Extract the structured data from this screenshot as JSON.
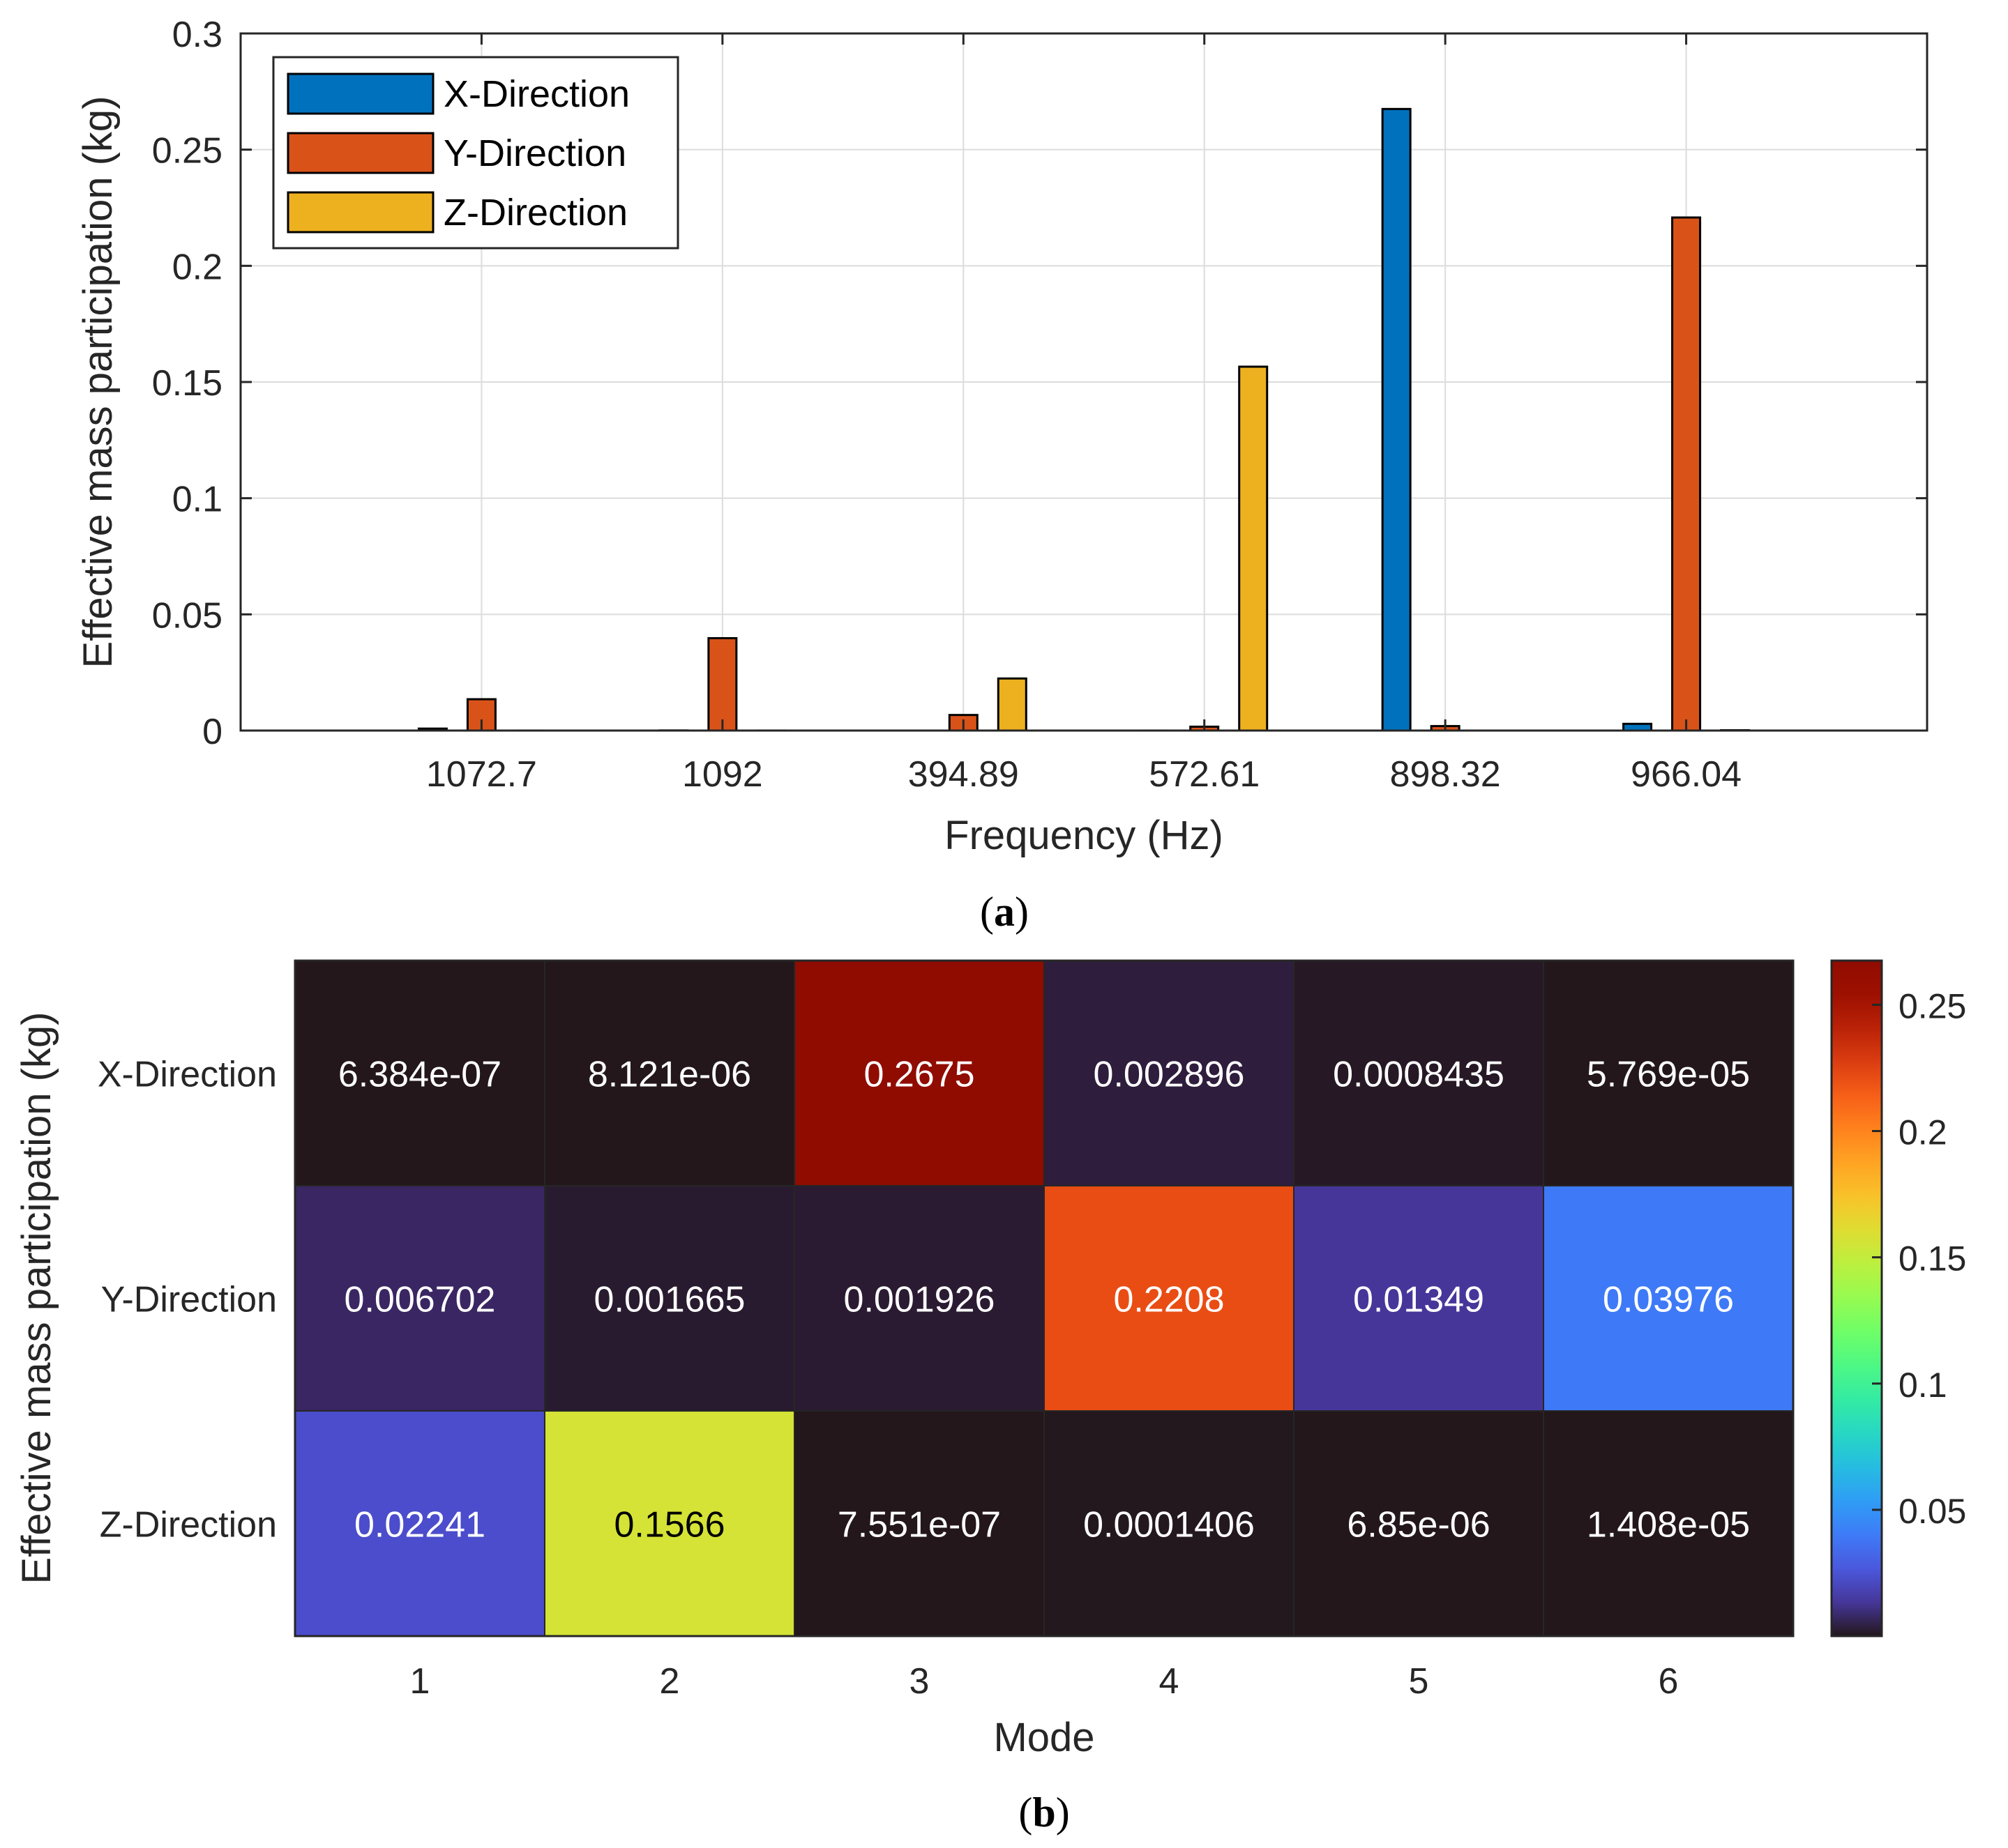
{
  "chart_data": [
    {
      "panel": "(a)",
      "type": "bar",
      "title": "",
      "xlabel": "Frequency (Hz)",
      "ylabel": "Effective mass participation (kg)",
      "ylim": [
        0,
        0.3
      ],
      "yticks": [
        "0",
        "0.05",
        "0.1",
        "0.15",
        "0.2",
        "0.25",
        "0.3"
      ],
      "grid": true,
      "legend_position": "top-left",
      "categories": [
        "1072.7",
        "1092",
        "394.89",
        "572.61",
        "898.32",
        "966.04"
      ],
      "series": [
        {
          "name": "X-Direction",
          "color": "#0072BD",
          "values": [
            0.0008435,
            5.769e-05,
            6.384e-07,
            8.121e-06,
            0.2675,
            0.002896
          ]
        },
        {
          "name": "Y-Direction",
          "color": "#D95319",
          "values": [
            0.01349,
            0.03976,
            0.006702,
            0.001665,
            0.001926,
            0.2208
          ]
        },
        {
          "name": "Z-Direction",
          "color": "#EDB120",
          "values": [
            6.85e-06,
            1.408e-05,
            0.02241,
            0.1566,
            7.551e-07,
            0.0001406
          ]
        }
      ]
    },
    {
      "panel": "(b)",
      "type": "heatmap",
      "title": "",
      "xlabel": "Mode",
      "ylabel": "Effective mass participation (kg)",
      "x": [
        "1",
        "2",
        "3",
        "4",
        "5",
        "6"
      ],
      "y": [
        "X-Direction",
        "Y-Direction",
        "Z-Direction"
      ],
      "values": [
        [
          6.384e-07,
          8.121e-06,
          0.2675,
          0.002896,
          0.0008435,
          5.769e-05
        ],
        [
          0.006702,
          0.001665,
          0.001926,
          0.2208,
          0.01349,
          0.03976
        ],
        [
          0.02241,
          0.1566,
          7.551e-07,
          0.0001406,
          6.85e-06,
          1.408e-05
        ]
      ],
      "cell_labels": [
        [
          "6.384e-07",
          "8.121e-06",
          "0.2675",
          "0.002896",
          "0.0008435",
          "5.769e-05"
        ],
        [
          "0.006702",
          "0.001665",
          "0.001926",
          "0.2208",
          "0.01349",
          "0.03976"
        ],
        [
          "0.02241",
          "0.1566",
          "7.551e-07",
          "0.0001406",
          "6.85e-06",
          "1.408e-05"
        ]
      ],
      "colormap": "turbo",
      "clim": [
        0,
        0.2675
      ],
      "colorbar_ticks": [
        "0.05",
        "0.1",
        "0.15",
        "0.2",
        "0.25"
      ]
    }
  ],
  "captions": {
    "a": "a",
    "b": "b"
  }
}
